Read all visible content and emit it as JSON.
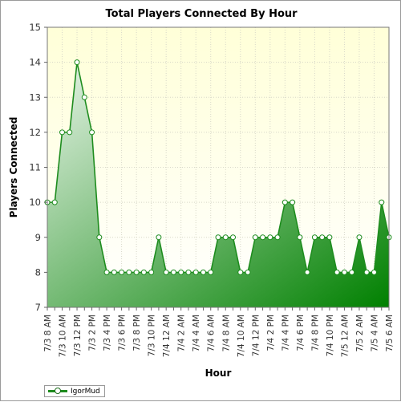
{
  "chart_data": {
    "type": "area",
    "title": "Total Players Connected By Hour",
    "xlabel": "Hour",
    "ylabel": "Players Connected",
    "ylim": [
      7,
      15
    ],
    "yticks": [
      "7",
      "8",
      "9",
      "10",
      "11",
      "12",
      "13",
      "14",
      "15"
    ],
    "grid": true,
    "legend_position": "bottom-left",
    "colors": {
      "line": "#1e8c1e",
      "fill_light": "#e8f4e8",
      "fill_dark": "#008000",
      "marker_fill": "#ffffff",
      "plot_bg_top": "#ffffd8",
      "plot_bg_bottom": "#ffffff"
    },
    "x": [
      "7/3 8 AM",
      "7/3 9 AM",
      "7/3 10 AM",
      "7/3 11 AM",
      "7/3 12 PM",
      "7/3 1 PM",
      "7/3 2 PM",
      "7/3 3 PM",
      "7/3 4 PM",
      "7/3 5 PM",
      "7/3 6 PM",
      "7/3 7 PM",
      "7/3 8 PM",
      "7/3 9 PM",
      "7/3 10 PM",
      "7/3 11 PM",
      "7/4 12 AM",
      "7/4 1 AM",
      "7/4 2 AM",
      "7/4 3 AM",
      "7/4 4 AM",
      "7/4 5 AM",
      "7/4 6 AM",
      "7/4 7 AM",
      "7/4 8 AM",
      "7/4 9 AM",
      "7/4 10 AM",
      "7/4 11 AM",
      "7/4 12 PM",
      "7/4 1 PM",
      "7/4 2 PM",
      "7/4 3 PM",
      "7/4 4 PM",
      "7/4 5 PM",
      "7/4 6 PM",
      "7/4 7 PM",
      "7/4 8 PM",
      "7/4 9 PM",
      "7/4 10 PM",
      "7/4 11 PM",
      "7/5 12 AM",
      "7/5 1 AM",
      "7/5 2 AM",
      "7/5 3 AM",
      "7/5 4 AM",
      "7/5 5 AM",
      "7/5 6 AM"
    ],
    "x_tick_labels": [
      "7/3 8 AM",
      "7/3 10 AM",
      "7/3 12 PM",
      "7/3 2 PM",
      "7/3 4 PM",
      "7/3 6 PM",
      "7/3 8 PM",
      "7/3 10 PM",
      "7/4 12 AM",
      "7/4 2 AM",
      "7/4 4 AM",
      "7/4 6 AM",
      "7/4 8 AM",
      "7/4 10 AM",
      "7/4 12 PM",
      "7/4 2 PM",
      "7/4 4 PM",
      "7/4 6 PM",
      "7/4 8 PM",
      "7/4 10 PM",
      "7/5 12 AM",
      "7/5 2 AM",
      "7/5 4 AM",
      "7/5 6 AM"
    ],
    "series": [
      {
        "name": "IgorMud",
        "values": [
          10,
          10,
          12,
          12,
          14,
          13,
          12,
          9,
          8,
          8,
          8,
          8,
          8,
          8,
          8,
          9,
          8,
          8,
          8,
          8,
          8,
          8,
          8,
          9,
          9,
          9,
          8,
          8,
          9,
          9,
          9,
          9,
          10,
          10,
          9,
          8,
          9,
          9,
          9,
          8,
          8,
          8,
          9,
          8,
          8,
          10,
          9
        ]
      }
    ]
  }
}
